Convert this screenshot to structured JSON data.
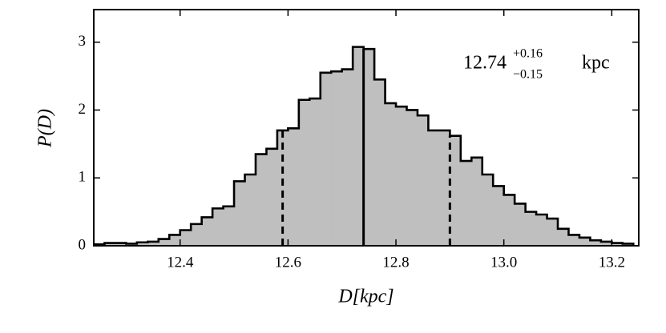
{
  "chart_data": {
    "type": "histogram",
    "xlabel": "D[kpc]",
    "ylabel": "P(D)",
    "annotation": {
      "median": 12.74,
      "plus": {
        "value": 0.16,
        "label": "+0.16"
      },
      "minus": {
        "value": -0.15,
        "label": "−0.15"
      },
      "unit": "kpc"
    },
    "bins": [
      12.24,
      12.26,
      12.28,
      12.3,
      12.32,
      12.34,
      12.36,
      12.38,
      12.4,
      12.42,
      12.44,
      12.46,
      12.48,
      12.5,
      12.52,
      12.54,
      12.56,
      12.58,
      12.6,
      12.62,
      12.64,
      12.66,
      12.68,
      12.7,
      12.72,
      12.74,
      12.76,
      12.78,
      12.8,
      12.82,
      12.84,
      12.86,
      12.88,
      12.9,
      12.92,
      12.94,
      12.96,
      12.98,
      13.0,
      13.02,
      13.04,
      13.06,
      13.08,
      13.1,
      13.12,
      13.14,
      13.16,
      13.18,
      13.2,
      13.22,
      13.24
    ],
    "values": [
      0.02,
      0.04,
      0.04,
      0.03,
      0.05,
      0.06,
      0.1,
      0.16,
      0.23,
      0.32,
      0.42,
      0.55,
      0.58,
      0.95,
      1.05,
      1.35,
      1.43,
      1.7,
      1.73,
      2.15,
      2.17,
      2.55,
      2.57,
      2.6,
      2.93,
      2.9,
      2.45,
      2.1,
      2.05,
      2.0,
      1.92,
      1.7,
      1.7,
      1.62,
      1.25,
      1.3,
      1.05,
      0.88,
      0.75,
      0.62,
      0.5,
      0.46,
      0.4,
      0.25,
      0.16,
      0.12,
      0.08,
      0.06,
      0.04,
      0.03
    ],
    "color": "#bfbfbf",
    "xlim": [
      12.24,
      13.25
    ],
    "ylim": [
      0,
      3.48
    ],
    "xticks": [
      {
        "value": 12.4,
        "label": "12.4"
      },
      {
        "value": 12.6,
        "label": "12.6"
      },
      {
        "value": 12.8,
        "label": "12.8"
      },
      {
        "value": 13.0,
        "label": "13.0"
      },
      {
        "value": 13.2,
        "label": "13.2"
      }
    ],
    "yticks": [
      0,
      1,
      2,
      3
    ]
  }
}
